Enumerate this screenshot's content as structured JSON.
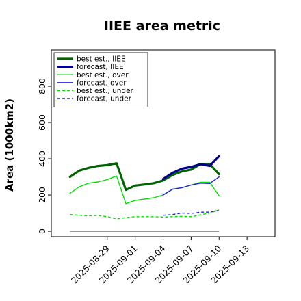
{
  "chart_data": {
    "type": "line",
    "title": "IIEE area metric",
    "xlabel": "",
    "ylabel": "Area (1000km2)",
    "ylim": [
      -30,
      1000
    ],
    "xlim": [
      "2025-08-23",
      "2025-09-16"
    ],
    "grid": false,
    "legend_position": "top-left",
    "x_ticks": [
      "2025-08-29",
      "2025-09-01",
      "2025-09-04",
      "2025-09-07",
      "2025-09-10",
      "2025-09-13"
    ],
    "highlighted_x_tick": "2025-09-04",
    "highlight_color": "#228B22",
    "y_ticks": [
      "0",
      "200",
      "400",
      "600",
      "800"
    ],
    "y_tick_values": [
      0,
      200,
      400,
      600,
      800
    ],
    "baseline": {
      "color": "#777777",
      "x": [
        "2025-08-25",
        "2025-09-10"
      ],
      "y": [
        0,
        0
      ]
    },
    "series": [
      {
        "name": "best est., IIEE",
        "color": "#006400",
        "width": 3.2,
        "dash": "",
        "x": [
          "2025-08-25",
          "2025-08-26",
          "2025-08-27",
          "2025-08-28",
          "2025-08-29",
          "2025-08-30",
          "2025-08-31",
          "2025-09-01",
          "2025-09-02",
          "2025-09-03",
          "2025-09-04",
          "2025-09-05",
          "2025-09-06",
          "2025-09-07",
          "2025-09-08",
          "2025-09-09",
          "2025-09-10"
        ],
        "y": [
          300,
          335,
          350,
          360,
          365,
          375,
          228,
          252,
          258,
          265,
          280,
          310,
          330,
          340,
          370,
          370,
          315
        ]
      },
      {
        "name": "forecast, IIEE",
        "color": "#00008B",
        "width": 3.2,
        "dash": "",
        "x": [
          "2025-09-04",
          "2025-09-05",
          "2025-09-06",
          "2025-09-07",
          "2025-09-08",
          "2025-09-09",
          "2025-09-10"
        ],
        "y": [
          288,
          322,
          345,
          355,
          370,
          360,
          415
        ]
      },
      {
        "name": "best est., over",
        "color": "#00DD00",
        "width": 1.4,
        "dash": "",
        "x": [
          "2025-08-25",
          "2025-08-26",
          "2025-08-27",
          "2025-08-28",
          "2025-08-29",
          "2025-08-30",
          "2025-08-31",
          "2025-09-01",
          "2025-09-02",
          "2025-09-03",
          "2025-09-04",
          "2025-09-05",
          "2025-09-06",
          "2025-09-07",
          "2025-09-08",
          "2025-09-09",
          "2025-09-10"
        ],
        "y": [
          210,
          245,
          265,
          272,
          285,
          305,
          152,
          170,
          178,
          185,
          200,
          232,
          240,
          255,
          270,
          270,
          195
        ]
      },
      {
        "name": "forecast, over",
        "color": "#2222DD",
        "width": 1.4,
        "dash": "",
        "x": [
          "2025-09-04",
          "2025-09-05",
          "2025-09-06",
          "2025-09-07",
          "2025-09-08",
          "2025-09-09",
          "2025-09-10"
        ],
        "y": [
          200,
          232,
          240,
          255,
          265,
          263,
          300
        ]
      },
      {
        "name": "best est., under",
        "color": "#00DD00",
        "width": 1.4,
        "dash": "4 3",
        "x": [
          "2025-08-25",
          "2025-08-26",
          "2025-08-27",
          "2025-08-28",
          "2025-08-29",
          "2025-08-30",
          "2025-08-31",
          "2025-09-01",
          "2025-09-02",
          "2025-09-03",
          "2025-09-04",
          "2025-09-05",
          "2025-09-06",
          "2025-09-07",
          "2025-09-08",
          "2025-09-09",
          "2025-09-10"
        ],
        "y": [
          92,
          88,
          85,
          87,
          80,
          68,
          75,
          80,
          80,
          80,
          78,
          80,
          82,
          80,
          90,
          100,
          118
        ]
      },
      {
        "name": "forecast, under",
        "color": "#2222DD",
        "width": 1.4,
        "dash": "4 3",
        "x": [
          "2025-09-04",
          "2025-09-05",
          "2025-09-06",
          "2025-09-07",
          "2025-09-08",
          "2025-09-09",
          "2025-09-10"
        ],
        "y": [
          88,
          92,
          100,
          98,
          105,
          105,
          115
        ]
      }
    ]
  }
}
